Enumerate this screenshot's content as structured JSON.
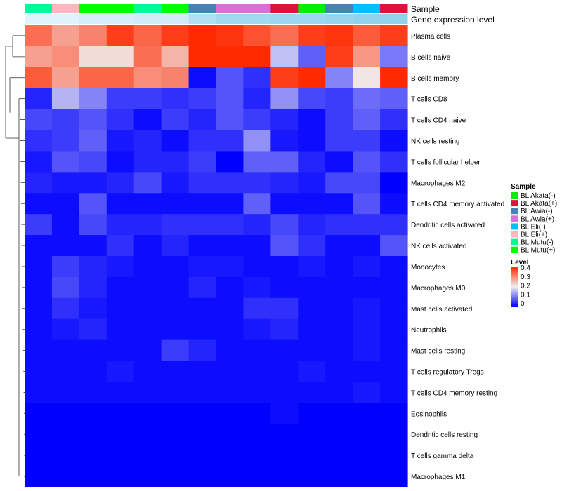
{
  "chart_data": {
    "type": "heatmap",
    "annotation_labels": {
      "sample": "Sample",
      "expression": "Gene expression level"
    },
    "rows": [
      "Plasma cells",
      "B cells naive",
      "B cells memory",
      "T cells CD8",
      "T cells CD4 naive",
      "NK cells resting",
      "T cells follicular helper",
      "Macrophages M2",
      "T cells CD4 memory activated",
      "Dendritic cells activated",
      "NK cells activated",
      "Monocytes",
      "Macrophages M0",
      "Mast cells activated",
      "Neutrophils",
      "Mast cells resting",
      "T cells regulatory  Tregs",
      "T cells CD4 memory resting",
      "Eosinophils",
      "Dendritic cells resting",
      "T cells gamma delta",
      "Macrophages M1"
    ],
    "column_samples": [
      "BL Mutu(-)",
      "BL Eli(+)",
      "BL Mutu(+)",
      "BL Mutu(+)",
      "BL Mutu(-)",
      "BL Mutu(+)",
      "BL Awia(-)",
      "BL Awia(+)",
      "BL Awia(+)",
      "BL Akata(+)",
      "BL Akata(-)",
      "BL Awia(-)",
      "BL Eli(-)",
      "BL Akata(+)"
    ],
    "expression_level": [
      0.03,
      0.03,
      0.05,
      0.05,
      0.06,
      0.06,
      0.12,
      0.15,
      0.15,
      0.16,
      0.16,
      0.17,
      0.18,
      0.18
    ],
    "values": [
      [
        0.33,
        0.28,
        0.31,
        0.38,
        0.34,
        0.38,
        0.4,
        0.39,
        0.36,
        0.33,
        0.38,
        0.39,
        0.35,
        0.38
      ],
      [
        0.28,
        0.3,
        0.22,
        0.22,
        0.33,
        0.26,
        0.42,
        0.42,
        0.42,
        0.16,
        0.08,
        0.38,
        0.29,
        0.1
      ],
      [
        0.35,
        0.28,
        0.34,
        0.34,
        0.3,
        0.31,
        0.01,
        0.07,
        0.04,
        0.38,
        0.41,
        0.11,
        0.21,
        0.41
      ],
      [
        0.03,
        0.15,
        0.11,
        0.05,
        0.05,
        0.04,
        0.05,
        0.07,
        0.03,
        0.12,
        0.06,
        0.05,
        0.09,
        0.08
      ],
      [
        0.06,
        0.05,
        0.07,
        0.04,
        0.01,
        0.05,
        0.03,
        0.07,
        0.05,
        0.03,
        0.01,
        0.05,
        0.08,
        0.04
      ],
      [
        0.04,
        0.05,
        0.08,
        0.02,
        0.03,
        0.01,
        0.04,
        0.04,
        0.12,
        0.02,
        0.01,
        0.05,
        0.05,
        0.01
      ],
      [
        0.02,
        0.07,
        0.06,
        0.01,
        0.03,
        0.03,
        0.05,
        0.0,
        0.08,
        0.08,
        0.03,
        0.01,
        0.07,
        0.04
      ],
      [
        0.03,
        0.02,
        0.02,
        0.03,
        0.06,
        0.02,
        0.04,
        0.04,
        0.04,
        0.03,
        0.02,
        0.06,
        0.06,
        0.0
      ],
      [
        0.01,
        0.01,
        0.07,
        0.01,
        0.01,
        0.01,
        0.01,
        0.01,
        0.08,
        0.01,
        0.01,
        0.01,
        0.07,
        0.01
      ],
      [
        0.05,
        0.01,
        0.06,
        0.03,
        0.03,
        0.04,
        0.04,
        0.04,
        0.03,
        0.06,
        0.03,
        0.04,
        0.04,
        0.04
      ],
      [
        0.01,
        0.01,
        0.01,
        0.04,
        0.01,
        0.03,
        0.01,
        0.01,
        0.01,
        0.07,
        0.04,
        0.01,
        0.01,
        0.07
      ],
      [
        0.01,
        0.05,
        0.03,
        0.02,
        0.01,
        0.01,
        0.02,
        0.02,
        0.01,
        0.01,
        0.02,
        0.01,
        0.02,
        0.01
      ],
      [
        0.01,
        0.06,
        0.03,
        0.01,
        0.01,
        0.01,
        0.03,
        0.01,
        0.02,
        0.01,
        0.01,
        0.01,
        0.01,
        0.01
      ],
      [
        0.01,
        0.04,
        0.02,
        0.01,
        0.01,
        0.01,
        0.01,
        0.01,
        0.04,
        0.04,
        0.01,
        0.01,
        0.02,
        0.01
      ],
      [
        0.01,
        0.02,
        0.03,
        0.01,
        0.01,
        0.01,
        0.01,
        0.01,
        0.02,
        0.03,
        0.01,
        0.01,
        0.02,
        0.01
      ],
      [
        0.01,
        0.01,
        0.01,
        0.01,
        0.01,
        0.05,
        0.03,
        0.01,
        0.01,
        0.01,
        0.01,
        0.01,
        0.02,
        0.01
      ],
      [
        0.01,
        0.01,
        0.01,
        0.02,
        0.01,
        0.01,
        0.01,
        0.01,
        0.01,
        0.01,
        0.02,
        0.01,
        0.01,
        0.01
      ],
      [
        0.01,
        0.01,
        0.01,
        0.01,
        0.01,
        0.01,
        0.01,
        0.01,
        0.01,
        0.01,
        0.01,
        0.01,
        0.02,
        0.01
      ],
      [
        0.0,
        0.0,
        0.0,
        0.0,
        0.0,
        0.0,
        0.0,
        0.0,
        0.0,
        0.01,
        0.0,
        0.0,
        0.0,
        0.0
      ],
      [
        0.0,
        0.0,
        0.0,
        0.0,
        0.0,
        0.0,
        0.0,
        0.0,
        0.0,
        0.0,
        0.0,
        0.0,
        0.0,
        0.0
      ],
      [
        0.0,
        0.0,
        0.0,
        0.0,
        0.0,
        0.0,
        0.0,
        0.0,
        0.0,
        0.0,
        0.0,
        0.0,
        0.0,
        0.0
      ],
      [
        0.0,
        0.0,
        0.0,
        0.0,
        0.0,
        0.0,
        0.0,
        0.0,
        0.0,
        0.0,
        0.0,
        0.0,
        0.0,
        0.0
      ]
    ],
    "color_scale": {
      "low": "#0000ff",
      "mid": "#f0f0f0",
      "high": "#ff2a00",
      "range": [
        0,
        0.4
      ]
    },
    "legend": {
      "placement": "right",
      "sample": {
        "title": "Sample",
        "entries": [
          {
            "label": "BL Akata(-)",
            "color": "#00ee00"
          },
          {
            "label": "BL Akata(+)",
            "color": "#dc143c"
          },
          {
            "label": "BL Awia(-)",
            "color": "#4682b4"
          },
          {
            "label": "BL Awia(+)",
            "color": "#da70d6"
          },
          {
            "label": "BL Eli(-)",
            "color": "#00bfff"
          },
          {
            "label": "BL Eli(+)",
            "color": "#ffb6c1"
          },
          {
            "label": "BL Mutu(-)",
            "color": "#00fa9a"
          },
          {
            "label": "BL Mutu(+)",
            "color": "#00ff00"
          }
        ]
      },
      "level": {
        "title": "Level",
        "ticks": [
          "0.4",
          "0.3",
          "0.2",
          "0.1",
          "0"
        ]
      }
    },
    "dendrogram": "rows"
  }
}
